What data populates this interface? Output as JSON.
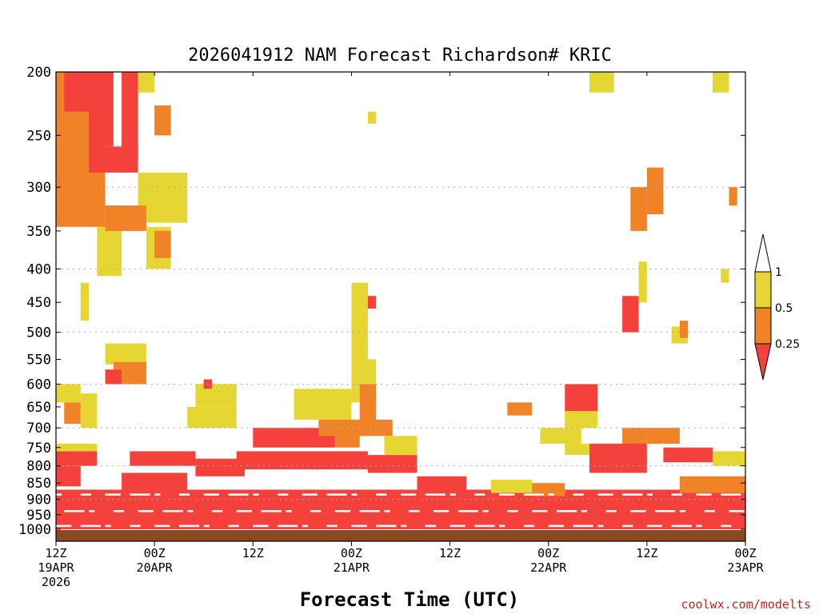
{
  "chart_data": {
    "type": "heatmap",
    "title": "2026041912 NAM Forecast Richardson# KRIC",
    "xlabel": "Forecast Time (UTC)",
    "ylabel": "",
    "credit": "coolwx.com/modelts",
    "x_range_hours": [
      0,
      84
    ],
    "y_scale": "log-pressure",
    "y_range_hPa": [
      1000,
      200
    ],
    "x_ticks": [
      {
        "hour": 0,
        "line1": "12Z",
        "line2": "19APR",
        "line3": "2026"
      },
      {
        "hour": 12,
        "line1": "00Z",
        "line2": "20APR",
        "line3": ""
      },
      {
        "hour": 24,
        "line1": "12Z",
        "line2": "",
        "line3": ""
      },
      {
        "hour": 36,
        "line1": "00Z",
        "line2": "21APR",
        "line3": ""
      },
      {
        "hour": 48,
        "line1": "12Z",
        "line2": "",
        "line3": ""
      },
      {
        "hour": 60,
        "line1": "00Z",
        "line2": "22APR",
        "line3": ""
      },
      {
        "hour": 72,
        "line1": "12Z",
        "line2": "",
        "line3": ""
      },
      {
        "hour": 84,
        "line1": "00Z",
        "line2": "23APR",
        "line3": ""
      }
    ],
    "y_ticks": [
      {
        "p": 200,
        "label": "200"
      },
      {
        "p": 250,
        "label": "250"
      },
      {
        "p": 300,
        "label": "300"
      },
      {
        "p": 350,
        "label": "350"
      },
      {
        "p": 400,
        "label": "400"
      },
      {
        "p": 450,
        "label": "450"
      },
      {
        "p": 500,
        "label": "500"
      },
      {
        "p": 550,
        "label": "550"
      },
      {
        "p": 600,
        "label": "600"
      },
      {
        "p": 650,
        "label": "650"
      },
      {
        "p": 700,
        "label": "700"
      },
      {
        "p": 750,
        "label": "750"
      },
      {
        "p": 800,
        "label": "800"
      },
      {
        "p": 850,
        "label": "850"
      },
      {
        "p": 900,
        "label": "900"
      },
      {
        "p": 950,
        "label": "950"
      },
      {
        "p": 1000,
        "label": "1000"
      }
    ],
    "grid_levels": [
      300,
      400,
      500,
      600,
      700,
      800,
      900
    ],
    "legend": {
      "entries": [
        {
          "label": "1",
          "value": 1
        },
        {
          "label": "0.5",
          "value": 0.5
        },
        {
          "label": "0.25",
          "value": 0.25
        }
      ],
      "colors": {
        "above_1": "#ffffff",
        "0.5_1": "#e6d633",
        "0.25_0.5": "#f08228",
        "below_0.25": "#f5413c"
      }
    },
    "colors": {
      "yellow": "#e6d633",
      "orange": "#f08228",
      "red": "#f5413c",
      "ground": "#8b4a1e",
      "grid": "#aaaaaa"
    },
    "category_codes": {
      "1": "Ri 0.5-1 (yellow)",
      "2": "Ri 0.25-0.5 (orange)",
      "3": "Ri < 0.25 (red)"
    },
    "regions": [
      {
        "h": [
          0,
          6
        ],
        "p": [
          200,
          345
        ],
        "cat": 2
      },
      {
        "h": [
          1,
          4
        ],
        "p": [
          200,
          230
        ],
        "cat": 3
      },
      {
        "h": [
          4,
          7
        ],
        "p": [
          200,
          260
        ],
        "cat": 3
      },
      {
        "h": [
          8,
          10
        ],
        "p": [
          200,
          270
        ],
        "cat": 3
      },
      {
        "h": [
          10,
          12
        ],
        "p": [
          200,
          215
        ],
        "cat": 1
      },
      {
        "h": [
          12,
          14
        ],
        "p": [
          225,
          250
        ],
        "cat": 2
      },
      {
        "h": [
          4,
          10
        ],
        "p": [
          260,
          285
        ],
        "cat": 3
      },
      {
        "h": [
          10,
          16
        ],
        "p": [
          285,
          340
        ],
        "cat": 1
      },
      {
        "h": [
          6,
          11
        ],
        "p": [
          320,
          350
        ],
        "cat": 2
      },
      {
        "h": [
          5,
          8
        ],
        "p": [
          345,
          410
        ],
        "cat": 1
      },
      {
        "h": [
          11,
          14
        ],
        "p": [
          345,
          400
        ],
        "cat": 1
      },
      {
        "h": [
          12,
          14
        ],
        "p": [
          350,
          385
        ],
        "cat": 2
      },
      {
        "h": [
          3,
          4
        ],
        "p": [
          420,
          480
        ],
        "cat": 1
      },
      {
        "h": [
          6,
          11
        ],
        "p": [
          520,
          560
        ],
        "cat": 1
      },
      {
        "h": [
          7,
          11
        ],
        "p": [
          555,
          600
        ],
        "cat": 2
      },
      {
        "h": [
          6,
          8
        ],
        "p": [
          570,
          600
        ],
        "cat": 3
      },
      {
        "h": [
          0,
          3
        ],
        "p": [
          600,
          640
        ],
        "cat": 1
      },
      {
        "h": [
          1,
          3
        ],
        "p": [
          640,
          690
        ],
        "cat": 2
      },
      {
        "h": [
          3,
          5
        ],
        "p": [
          620,
          700
        ],
        "cat": 1
      },
      {
        "h": [
          17,
          22
        ],
        "p": [
          600,
          650
        ],
        "cat": 1
      },
      {
        "h": [
          18,
          19
        ],
        "p": [
          590,
          610
        ],
        "cat": 3
      },
      {
        "h": [
          16,
          22
        ],
        "p": [
          650,
          700
        ],
        "cat": 1
      },
      {
        "h": [
          29,
          36
        ],
        "p": [
          610,
          680
        ],
        "cat": 1
      },
      {
        "h": [
          36,
          39
        ],
        "p": [
          550,
          640
        ],
        "cat": 1
      },
      {
        "h": [
          37,
          39
        ],
        "p": [
          600,
          720
        ],
        "cat": 2
      },
      {
        "h": [
          36,
          38
        ],
        "p": [
          420,
          550
        ],
        "cat": 1
      },
      {
        "h": [
          38,
          39
        ],
        "p": [
          440,
          460
        ],
        "cat": 3
      },
      {
        "h": [
          32,
          41
        ],
        "p": [
          680,
          720
        ],
        "cat": 2
      },
      {
        "h": [
          24,
          34
        ],
        "p": [
          700,
          750
        ],
        "cat": 3
      },
      {
        "h": [
          34,
          37
        ],
        "p": [
          700,
          750
        ],
        "cat": 2
      },
      {
        "h": [
          40,
          44
        ],
        "p": [
          720,
          770
        ],
        "cat": 1
      },
      {
        "h": [
          0,
          5
        ],
        "p": [
          740,
          760
        ],
        "cat": 1
      },
      {
        "h": [
          0,
          5
        ],
        "p": [
          760,
          800
        ],
        "cat": 3
      },
      {
        "h": [
          9,
          17
        ],
        "p": [
          760,
          800
        ],
        "cat": 3
      },
      {
        "h": [
          17,
          23
        ],
        "p": [
          780,
          830
        ],
        "cat": 3
      },
      {
        "h": [
          22,
          38
        ],
        "p": [
          760,
          810
        ],
        "cat": 3
      },
      {
        "h": [
          38,
          44
        ],
        "p": [
          770,
          820
        ],
        "cat": 3
      },
      {
        "h": [
          0,
          3
        ],
        "p": [
          800,
          860
        ],
        "cat": 3
      },
      {
        "h": [
          8,
          16
        ],
        "p": [
          820,
          880
        ],
        "cat": 3
      },
      {
        "h": [
          44,
          50
        ],
        "p": [
          830,
          880
        ],
        "cat": 3
      },
      {
        "h": [
          53,
          58
        ],
        "p": [
          840,
          880
        ],
        "cat": 1
      },
      {
        "h": [
          58,
          62
        ],
        "p": [
          850,
          890
        ],
        "cat": 2
      },
      {
        "h": [
          59,
          64
        ],
        "p": [
          700,
          740
        ],
        "cat": 1
      },
      {
        "h": [
          62,
          65
        ],
        "p": [
          740,
          770
        ],
        "cat": 1
      },
      {
        "h": [
          55,
          58
        ],
        "p": [
          640,
          670
        ],
        "cat": 2
      },
      {
        "h": [
          62,
          66
        ],
        "p": [
          600,
          660
        ],
        "cat": 3
      },
      {
        "h": [
          62,
          66
        ],
        "p": [
          660,
          700
        ],
        "cat": 1
      },
      {
        "h": [
          65,
          72
        ],
        "p": [
          740,
          820
        ],
        "cat": 3
      },
      {
        "h": [
          69,
          72
        ],
        "p": [
          700,
          740
        ],
        "cat": 2
      },
      {
        "h": [
          72,
          76
        ],
        "p": [
          700,
          740
        ],
        "cat": 2
      },
      {
        "h": [
          74,
          80
        ],
        "p": [
          750,
          790
        ],
        "cat": 3
      },
      {
        "h": [
          80,
          84
        ],
        "p": [
          760,
          800
        ],
        "cat": 1
      },
      {
        "h": [
          76,
          84
        ],
        "p": [
          830,
          880
        ],
        "cat": 2
      },
      {
        "h": [
          69,
          71
        ],
        "p": [
          440,
          500
        ],
        "cat": 3
      },
      {
        "h": [
          70,
          72
        ],
        "p": [
          300,
          350
        ],
        "cat": 2
      },
      {
        "h": [
          72,
          74
        ],
        "p": [
          280,
          330
        ],
        "cat": 2
      },
      {
        "h": [
          71,
          72
        ],
        "p": [
          390,
          450
        ],
        "cat": 1
      },
      {
        "h": [
          75,
          77
        ],
        "p": [
          490,
          520
        ],
        "cat": 1
      },
      {
        "h": [
          76,
          77
        ],
        "p": [
          480,
          510
        ],
        "cat": 2
      },
      {
        "h": [
          65,
          68
        ],
        "p": [
          200,
          215
        ],
        "cat": 1
      },
      {
        "h": [
          80,
          82
        ],
        "p": [
          200,
          215
        ],
        "cat": 1
      },
      {
        "h": [
          82,
          83
        ],
        "p": [
          300,
          320
        ],
        "cat": 2
      },
      {
        "h": [
          81,
          82
        ],
        "p": [
          400,
          420
        ],
        "cat": 1
      },
      {
        "h": [
          38,
          39
        ],
        "p": [
          230,
          240
        ],
        "cat": 1
      },
      {
        "h": [
          0,
          84
        ],
        "p": [
          870,
          1000
        ],
        "cat": 3
      }
    ]
  }
}
